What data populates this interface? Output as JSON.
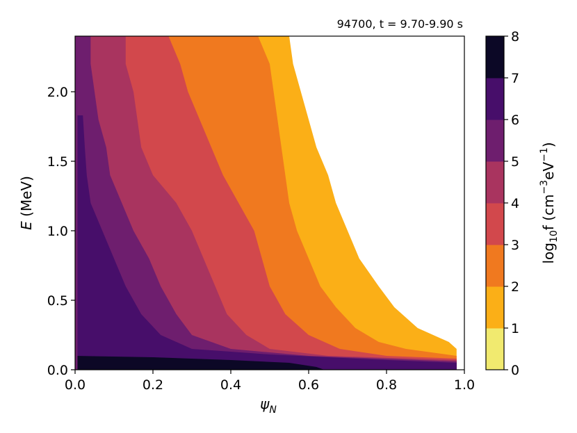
{
  "chart_data": {
    "type": "heatmap",
    "title": "94700, t = 9.70-9.90 s",
    "xlabel": "ψ",
    "xlabel_sub": "N",
    "ylabel_italic": "E",
    "ylabel_unit": " (MeV)",
    "xlim": [
      0.0,
      1.0
    ],
    "ylim": [
      0.0,
      2.4
    ],
    "x_ticks": [
      "0.0",
      "0.2",
      "0.4",
      "0.6",
      "0.8",
      "1.0"
    ],
    "y_ticks": [
      "0.0",
      "0.5",
      "1.0",
      "1.5",
      "2.0"
    ],
    "grid": false,
    "data_extent": {
      "x_max": 0.98
    },
    "colorbar": {
      "label_prefix": "log",
      "label_base": "10",
      "label_mid": "f (cm",
      "label_exp1": "−3",
      "label_mid2": "eV",
      "label_exp2": "−1",
      "label_suffix": ")",
      "levels": [
        0,
        1,
        2,
        3,
        4,
        5,
        6,
        7,
        8
      ],
      "tick_labels": [
        "0",
        "1",
        "2",
        "3",
        "4",
        "5",
        "6",
        "7",
        "8"
      ],
      "colors": [
        "#f1ea6f",
        "#fbaf17",
        "#f0791f",
        "#d2484c",
        "#a9345f",
        "#6e1e6e",
        "#470e6a",
        "#0c0826"
      ]
    },
    "boundaries": [
      {
        "level": 1,
        "points": [
          [
            0.55,
            2.4
          ],
          [
            0.56,
            2.2
          ],
          [
            0.58,
            2.0
          ],
          [
            0.6,
            1.8
          ],
          [
            0.62,
            1.6
          ],
          [
            0.65,
            1.4
          ],
          [
            0.67,
            1.2
          ],
          [
            0.7,
            1.0
          ],
          [
            0.73,
            0.8
          ],
          [
            0.78,
            0.6
          ],
          [
            0.82,
            0.45
          ],
          [
            0.88,
            0.3
          ],
          [
            0.96,
            0.2
          ],
          [
            0.98,
            0.15
          ]
        ]
      },
      {
        "level": 2,
        "points": [
          [
            0.47,
            2.4
          ],
          [
            0.5,
            2.2
          ],
          [
            0.51,
            2.0
          ],
          [
            0.52,
            1.8
          ],
          [
            0.53,
            1.6
          ],
          [
            0.54,
            1.4
          ],
          [
            0.55,
            1.2
          ],
          [
            0.57,
            1.0
          ],
          [
            0.6,
            0.8
          ],
          [
            0.63,
            0.6
          ],
          [
            0.67,
            0.45
          ],
          [
            0.72,
            0.3
          ],
          [
            0.78,
            0.2
          ],
          [
            0.85,
            0.15
          ],
          [
            0.98,
            0.1
          ]
        ]
      },
      {
        "level": 3,
        "points": [
          [
            0.24,
            2.4
          ],
          [
            0.27,
            2.2
          ],
          [
            0.29,
            2.0
          ],
          [
            0.32,
            1.8
          ],
          [
            0.35,
            1.6
          ],
          [
            0.38,
            1.4
          ],
          [
            0.42,
            1.2
          ],
          [
            0.46,
            1.0
          ],
          [
            0.48,
            0.8
          ],
          [
            0.5,
            0.6
          ],
          [
            0.54,
            0.4
          ],
          [
            0.6,
            0.25
          ],
          [
            0.68,
            0.15
          ],
          [
            0.8,
            0.1
          ],
          [
            0.98,
            0.08
          ]
        ]
      },
      {
        "level": 4,
        "points": [
          [
            0.13,
            2.4
          ],
          [
            0.13,
            2.2
          ],
          [
            0.15,
            2.0
          ],
          [
            0.16,
            1.8
          ],
          [
            0.17,
            1.6
          ],
          [
            0.2,
            1.4
          ],
          [
            0.26,
            1.2
          ],
          [
            0.3,
            1.0
          ],
          [
            0.33,
            0.8
          ],
          [
            0.36,
            0.6
          ],
          [
            0.39,
            0.4
          ],
          [
            0.44,
            0.25
          ],
          [
            0.5,
            0.15
          ],
          [
            0.65,
            0.1
          ],
          [
            0.98,
            0.07
          ]
        ]
      },
      {
        "level": 5,
        "points": [
          [
            0.04,
            2.4
          ],
          [
            0.04,
            2.2
          ],
          [
            0.05,
            2.0
          ],
          [
            0.06,
            1.8
          ],
          [
            0.08,
            1.6
          ],
          [
            0.09,
            1.4
          ],
          [
            0.12,
            1.2
          ],
          [
            0.15,
            1.0
          ],
          [
            0.19,
            0.8
          ],
          [
            0.22,
            0.6
          ],
          [
            0.26,
            0.4
          ],
          [
            0.3,
            0.25
          ],
          [
            0.4,
            0.15
          ],
          [
            0.6,
            0.1
          ],
          [
            0.98,
            0.06
          ]
        ]
      },
      {
        "level": 6,
        "points": [
          [
            0.02,
            1.83
          ],
          [
            0.025,
            1.6
          ],
          [
            0.03,
            1.4
          ],
          [
            0.04,
            1.2
          ],
          [
            0.07,
            1.0
          ],
          [
            0.1,
            0.8
          ],
          [
            0.13,
            0.6
          ],
          [
            0.17,
            0.4
          ],
          [
            0.22,
            0.25
          ],
          [
            0.3,
            0.15
          ],
          [
            0.5,
            0.11
          ],
          [
            0.8,
            0.07
          ],
          [
            0.98,
            0.05
          ]
        ]
      },
      {
        "level": 7,
        "points": [
          [
            0.0,
            0.1
          ],
          [
            0.2,
            0.09
          ],
          [
            0.4,
            0.07
          ],
          [
            0.55,
            0.05
          ],
          [
            0.62,
            0.02
          ],
          [
            0.64,
            0.0
          ]
        ]
      }
    ]
  }
}
